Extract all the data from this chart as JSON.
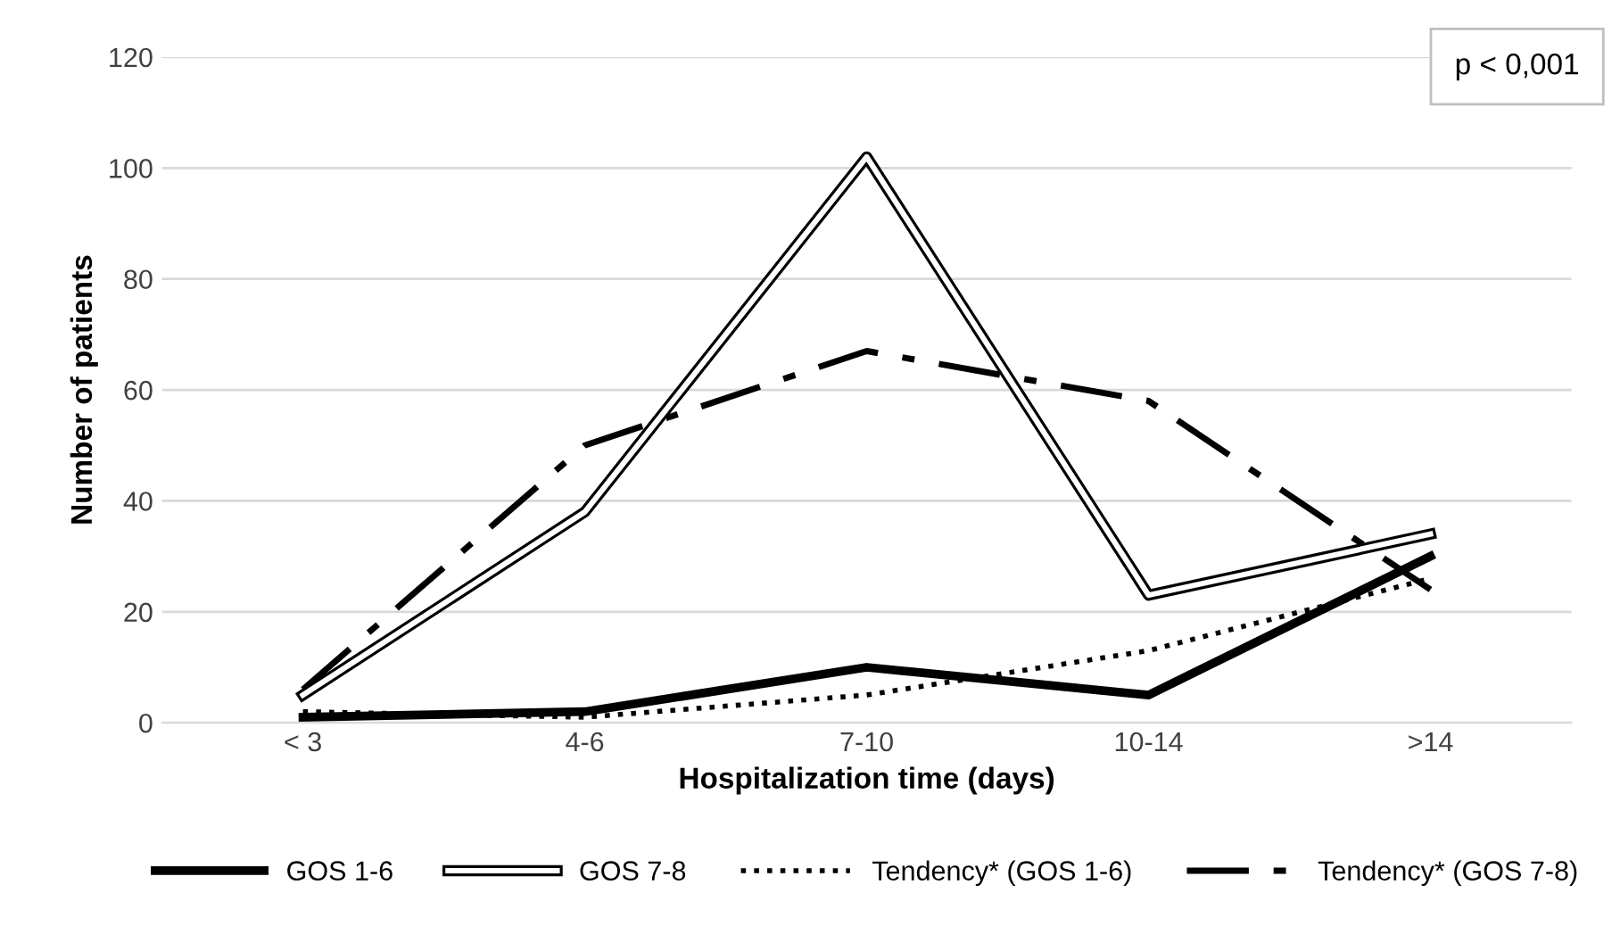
{
  "chart_data": {
    "type": "line",
    "xlabel": "Hospitalization time (days)",
    "ylabel": "Number of patients",
    "categories": [
      "< 3",
      "4-6",
      "7-10",
      "10-14",
      ">14"
    ],
    "series": [
      {
        "name": "GOS 1-6",
        "color": "#000000",
        "values": [
          1,
          2,
          10,
          5,
          30
        ],
        "line_style": "solid"
      },
      {
        "name": "GOS 7-8",
        "color": "#000000",
        "values": [
          5,
          38,
          102,
          23,
          34
        ],
        "line_style": "solid"
      },
      {
        "name": "Tendency* (GOS 1-6)",
        "color": "#000000",
        "values": [
          2,
          1,
          5,
          13,
          26
        ],
        "line_style": "dotted"
      },
      {
        "name": "Tendency* (GOS 7-8)",
        "color": "#000000",
        "values": [
          6,
          50,
          67,
          58,
          24
        ],
        "line_style": "dashdot"
      }
    ],
    "ylim": [
      0,
      120
    ],
    "yticks": [
      0,
      20,
      40,
      60,
      80,
      100,
      120
    ],
    "grid": "y",
    "legend": "bottom",
    "annotations": [
      "p < 0,001"
    ]
  }
}
